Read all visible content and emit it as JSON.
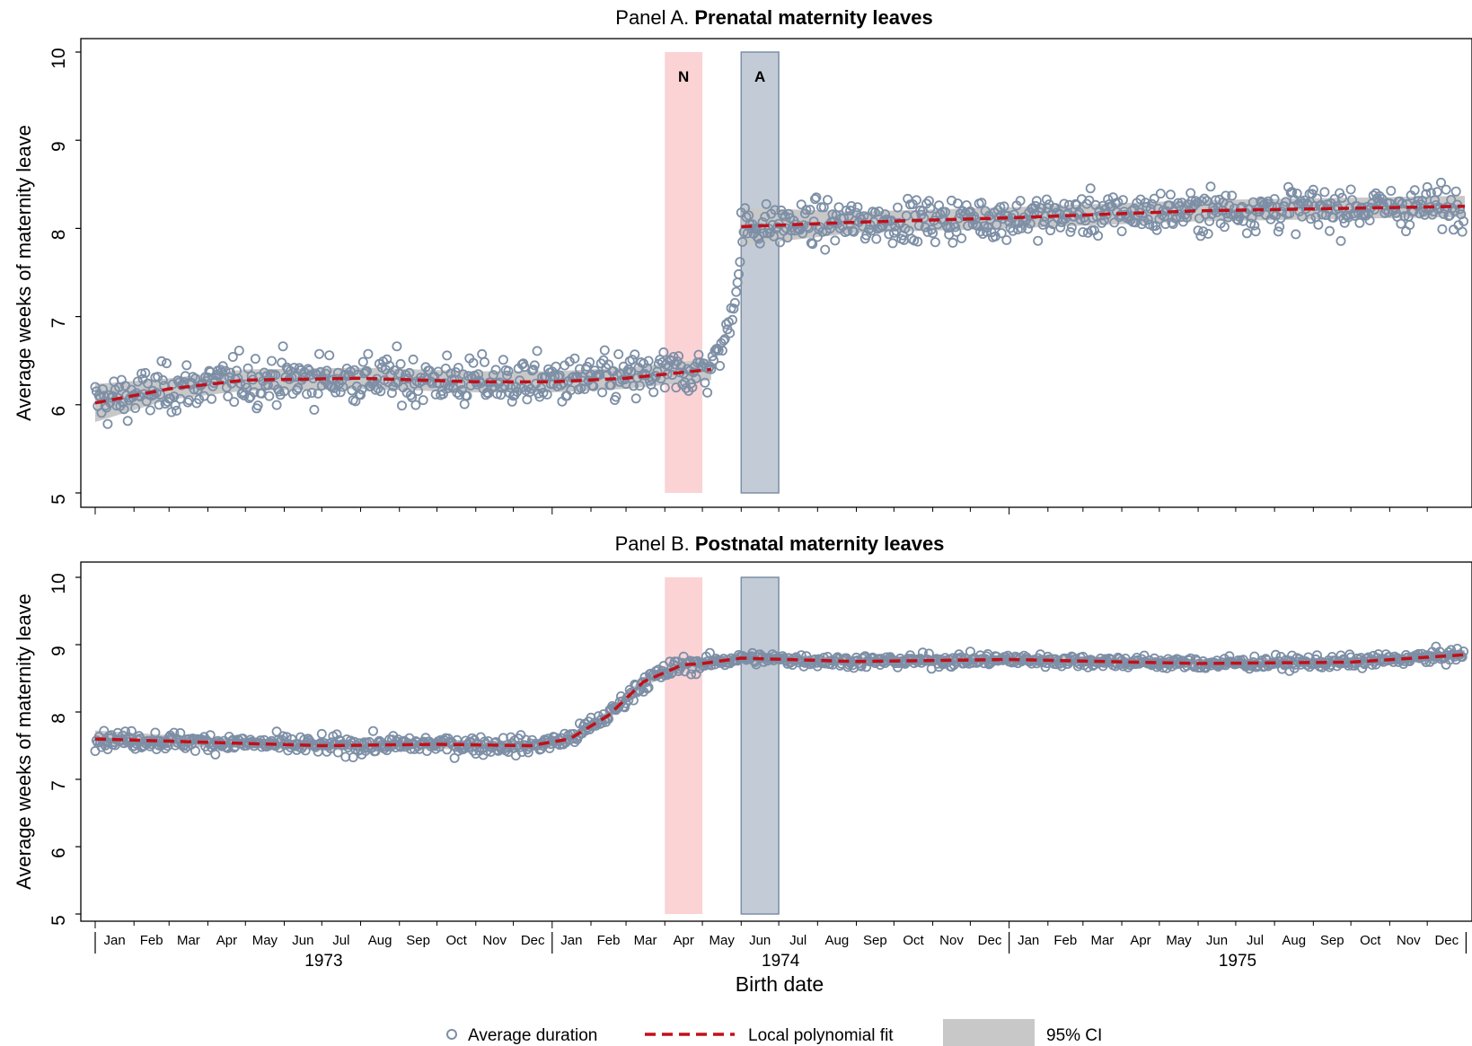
{
  "colors": {
    "points": "#7d8fa6",
    "fit": "#c0101a",
    "ci": "#c8c8c8",
    "band_N": "#fbd3d5",
    "band_A": "#c3ccd6",
    "band_A_stroke": "#7d8fa6"
  },
  "legend": {
    "points_label": "Average duration",
    "fit_label": "Local polynomial fit",
    "ci_label": "95% CI"
  },
  "xaxis": {
    "title": "Birth date",
    "months": [
      "Jan",
      "Feb",
      "Mar",
      "Apr",
      "May",
      "Jun",
      "Jul",
      "Aug",
      "Sep",
      "Oct",
      "Nov",
      "Dec"
    ],
    "years": [
      "1973",
      "1974",
      "1975"
    ]
  },
  "chart_data": [
    {
      "type": "scatter",
      "panel_prefix": "Panel A. ",
      "panel_title": "Prenatal maternity leaves",
      "ylabel": "Average weeks of maternity leave",
      "ylim": [
        5,
        10
      ],
      "yticks": [
        5,
        6,
        7,
        8,
        9,
        10
      ],
      "xlim": [
        "1973-01-01",
        "1975-12-31"
      ],
      "bands": [
        {
          "label": "N",
          "start": "1974-04-01",
          "end": "1974-05-01"
        },
        {
          "label": "A",
          "start": "1974-06-01",
          "end": "1974-07-01"
        }
      ],
      "points_per_week": 7,
      "segments": [
        {
          "start": "1973-01-01",
          "end": "1974-05-08",
          "jitter": 0.35
        },
        {
          "start": "1974-05-08",
          "end": "1974-06-01",
          "jitter": 0.22
        },
        {
          "start": "1974-06-01",
          "end": "1975-12-31",
          "jitter": 0.3
        }
      ],
      "fit": [
        {
          "x": "1973-01-01",
          "y": 6.02
        },
        {
          "x": "1973-03-01",
          "y": 6.18
        },
        {
          "x": "1973-05-01",
          "y": 6.28
        },
        {
          "x": "1973-08-01",
          "y": 6.3
        },
        {
          "x": "1973-11-01",
          "y": 6.26
        },
        {
          "x": "1974-01-01",
          "y": 6.26
        },
        {
          "x": "1974-03-01",
          "y": 6.3
        },
        {
          "x": "1974-05-08",
          "y": 6.4
        },
        {
          "x": "1974-05-09",
          "y": 6.5
        },
        {
          "x": "1974-05-20",
          "y": 6.85
        },
        {
          "x": "1974-06-01",
          "y": 8.02
        },
        {
          "x": "1974-09-01",
          "y": 8.07
        },
        {
          "x": "1975-01-01",
          "y": 8.12
        },
        {
          "x": "1975-06-01",
          "y": 8.2
        },
        {
          "x": "1975-12-31",
          "y": 8.25
        }
      ]
    },
    {
      "type": "scatter",
      "panel_prefix": "Panel B. ",
      "panel_title": "Postnatal maternity leaves",
      "ylabel": "Average weeks of maternity leave",
      "ylim": [
        5,
        10
      ],
      "yticks": [
        5,
        6,
        7,
        8,
        9,
        10
      ],
      "xlim": [
        "1973-01-01",
        "1975-12-31"
      ],
      "bands": [
        {
          "label": "",
          "start": "1974-04-01",
          "end": "1974-05-01"
        },
        {
          "label": "",
          "start": "1974-06-01",
          "end": "1974-07-01"
        }
      ],
      "points_per_week": 7,
      "segments": [
        {
          "start": "1973-01-01",
          "end": "1974-05-01",
          "jitter": 0.17
        },
        {
          "start": "1974-05-01",
          "end": "1975-12-31",
          "jitter": 0.12
        }
      ],
      "fit": [
        {
          "x": "1973-01-01",
          "y": 7.6
        },
        {
          "x": "1973-04-01",
          "y": 7.55
        },
        {
          "x": "1973-07-01",
          "y": 7.5
        },
        {
          "x": "1973-10-01",
          "y": 7.52
        },
        {
          "x": "1973-12-15",
          "y": 7.5
        },
        {
          "x": "1974-01-15",
          "y": 7.6
        },
        {
          "x": "1974-02-15",
          "y": 7.95
        },
        {
          "x": "1974-03-15",
          "y": 8.45
        },
        {
          "x": "1974-04-15",
          "y": 8.7
        },
        {
          "x": "1974-05-01",
          "y": 8.72
        },
        {
          "x": "1974-06-01",
          "y": 8.8
        },
        {
          "x": "1974-09-01",
          "y": 8.75
        },
        {
          "x": "1975-01-01",
          "y": 8.78
        },
        {
          "x": "1975-06-01",
          "y": 8.72
        },
        {
          "x": "1975-10-01",
          "y": 8.74
        },
        {
          "x": "1975-12-31",
          "y": 8.85
        }
      ]
    }
  ]
}
